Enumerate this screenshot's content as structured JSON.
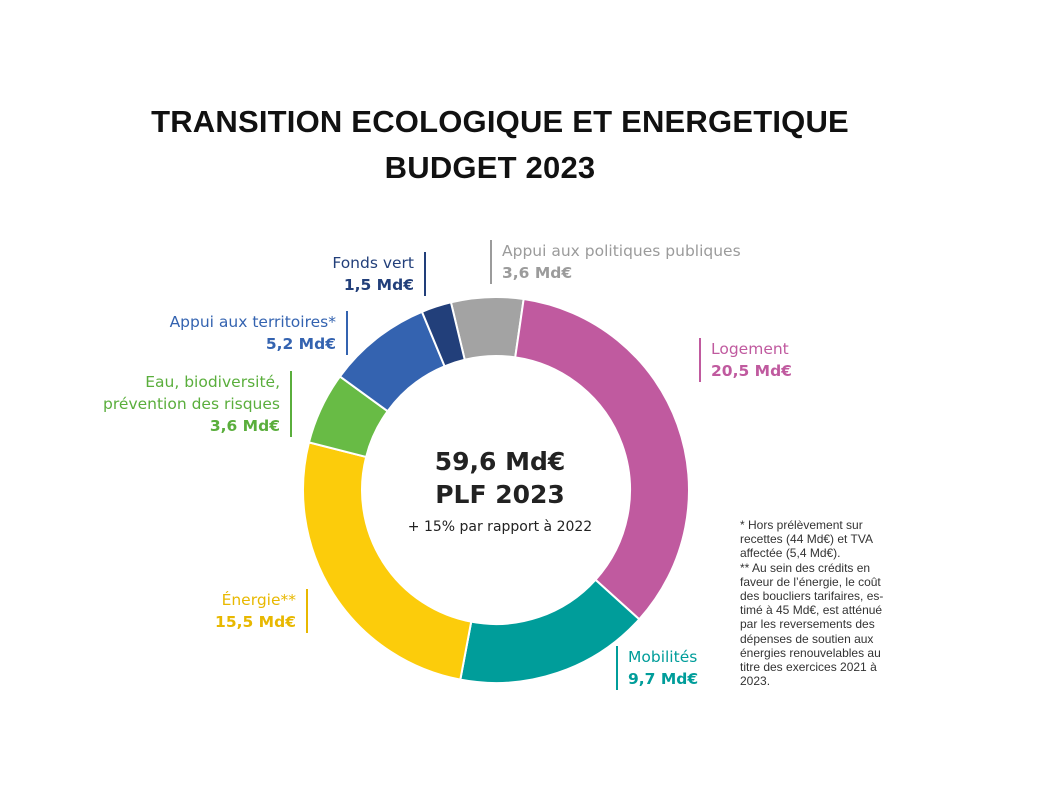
{
  "title": {
    "line1": "TRANSITION ECOLOGIQUE ET ENERGETIQUE",
    "line2": "BUDGET 2023"
  },
  "center": {
    "total": "59,6 Md€",
    "subtitle": "PLF 2023",
    "change": "+ 15% par rapport à 2022"
  },
  "chart_data": {
    "type": "pie",
    "donut": true,
    "total": 59.6,
    "unit": "Md€",
    "slices": [
      {
        "label": "Appui aux politiques publiques",
        "value": 3.6,
        "value_label": "3,6 Md€",
        "color": "#a3a3a3"
      },
      {
        "label": "Logement",
        "value": 20.5,
        "value_label": "20,5 Md€",
        "color": "#c05a9f"
      },
      {
        "label": "Mobilités",
        "value": 9.7,
        "value_label": "9,7 Md€",
        "color": "#009d9a"
      },
      {
        "label": "Énergie**",
        "value": 15.5,
        "value_label": "15,5 Md€",
        "color": "#fccc0b"
      },
      {
        "label": "Eau, biodiversité, prévention des risques",
        "value": 3.6,
        "value_label": "3,6 Md€",
        "color": "#68bb45"
      },
      {
        "label": "Appui aux territoires*",
        "value": 5.2,
        "value_label": "5,2 Md€",
        "color": "#3463b0"
      },
      {
        "label": "Fonds vert",
        "value": 1.5,
        "value_label": "1,5 Md€",
        "color": "#223f7a"
      }
    ]
  },
  "labels": {
    "appui_politiques": {
      "name": "Appui aux politiques publiques",
      "value": "3,6 Md€"
    },
    "logement": {
      "name": "Logement",
      "value": "20,5 Md€"
    },
    "mobilites": {
      "name": "Mobilités",
      "value": "9,7 Md€"
    },
    "energie": {
      "name": "Énergie**",
      "value": "15,5 Md€"
    },
    "eau_line1": "Eau, biodiversité,",
    "eau_line2": "prévention des risques",
    "eau_value": "3,6 Md€",
    "territoires": {
      "name": "Appui aux territoires*",
      "value": "5,2 Md€"
    },
    "fonds_vert": {
      "name": "Fonds vert",
      "value": "1,5 Md€"
    }
  },
  "footnote": "* Hors prélèvement sur\nrecettes (44 Md€) et TVA\naffectée (5,4 Md€).\n** Au sein des crédits en\nfaveur de l’énergie, le coût\ndes boucliers tarifaires, es-\ntimé à 45 Md€, est atténué\npar les reversements des\ndépenses de soutien aux\nénergies renouvelables au\ntitre des exercices 2021 à\n2023."
}
